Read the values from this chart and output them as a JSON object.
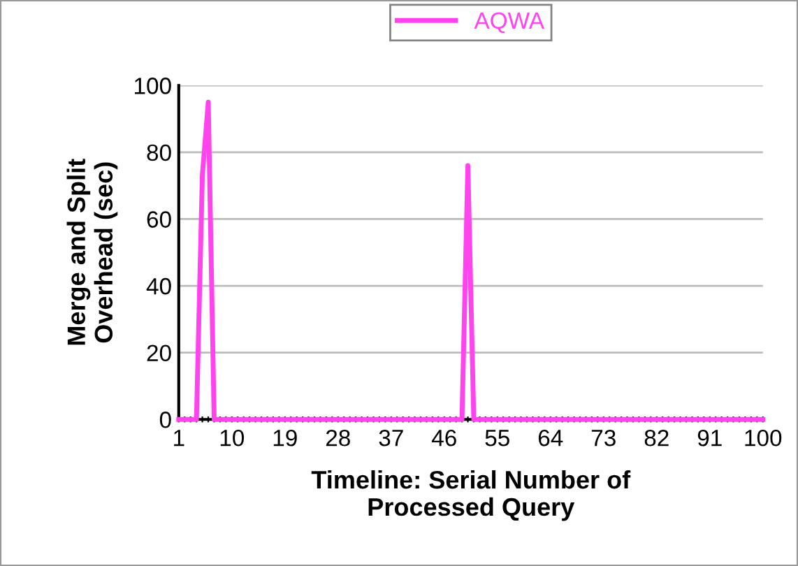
{
  "chart_data": {
    "type": "line",
    "xlabel": "Timeline: Serial Number of\nProcessed Query",
    "ylabel": "Merge and Split\nOverhead (sec)",
    "categories": [
      "1",
      null,
      null,
      null,
      null,
      null,
      null,
      null,
      null,
      "10",
      null,
      null,
      null,
      null,
      null,
      null,
      null,
      null,
      "19",
      null,
      null,
      null,
      null,
      null,
      null,
      null,
      null,
      "28",
      null,
      null,
      null,
      null,
      null,
      null,
      null,
      null,
      "37",
      null,
      null,
      null,
      null,
      null,
      null,
      null,
      null,
      "46",
      null,
      null,
      null,
      null,
      null,
      null,
      null,
      null,
      "55",
      null,
      null,
      null,
      null,
      null,
      null,
      null,
      null,
      "64",
      null,
      null,
      null,
      null,
      null,
      null,
      null,
      null,
      "73",
      null,
      null,
      null,
      null,
      null,
      null,
      null,
      null,
      "82",
      null,
      null,
      null,
      null,
      null,
      null,
      null,
      null,
      "91",
      null,
      null,
      null,
      null,
      null,
      null,
      null,
      null,
      "100"
    ],
    "series": [
      {
        "name": "AQWA",
        "color": "#ff44ee",
        "values": [
          0,
          0,
          0,
          0,
          73,
          95,
          0,
          0,
          0,
          0,
          0,
          0,
          0,
          0,
          0,
          0,
          0,
          0,
          0,
          0,
          0,
          0,
          0,
          0,
          0,
          0,
          0,
          0,
          0,
          0,
          0,
          0,
          0,
          0,
          0,
          0,
          0,
          0,
          0,
          0,
          0,
          0,
          0,
          0,
          0,
          0,
          0,
          0,
          0,
          76,
          0,
          0,
          0,
          0,
          0,
          0,
          0,
          0,
          0,
          0,
          0,
          0,
          0,
          0,
          0,
          0,
          0,
          0,
          0,
          0,
          0,
          0,
          0,
          0,
          0,
          0,
          0,
          0,
          0,
          0,
          0,
          0,
          0,
          0,
          0,
          0,
          0,
          0,
          0,
          0,
          0,
          0,
          0,
          0,
          0,
          0,
          0,
          0,
          0,
          0
        ]
      }
    ],
    "ylim": [
      0,
      100
    ],
    "yticks": [
      0,
      20,
      40,
      60,
      80,
      100
    ],
    "grid": "y",
    "legend": "top",
    "marker": "none",
    "line_style": "solid"
  }
}
